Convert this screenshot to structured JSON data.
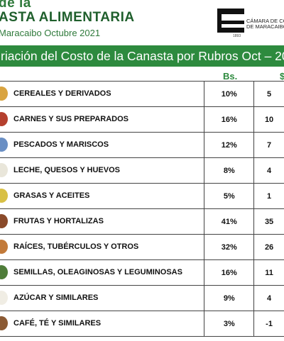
{
  "header": {
    "title_line1": "de la",
    "title_line2": "ASTA ALIMENTARIA",
    "subtitle": "Maracaibo Octubre 2021",
    "logo_line1": "CÁMARA DE CO",
    "logo_line2": "DE MARACAIBO",
    "logo_small": "1893"
  },
  "banner": {
    "text": "riación del Costo de la Canasta por Rubros Oct – 20"
  },
  "columns": {
    "bs": "Bs.",
    "usd": "$"
  },
  "colors": {
    "accent_green": "#2d8a3e",
    "title_green": "#1f5f2c"
  },
  "rows": [
    {
      "name": "CEREALES Y DERIVADOS",
      "bs": "10%",
      "usd": "5",
      "icon": "bread-icon"
    },
    {
      "name": "CARNES Y SUS PREPARADOS",
      "bs": "16%",
      "usd": "10",
      "icon": "meat-icon"
    },
    {
      "name": "PESCADOS Y MARISCOS",
      "bs": "12%",
      "usd": "7",
      "icon": "fish-icon"
    },
    {
      "name": "LECHE, QUESOS Y HUEVOS",
      "bs": "8%",
      "usd": "4",
      "icon": "milk-icon"
    },
    {
      "name": "GRASAS Y ACEITES",
      "bs": "5%",
      "usd": "1",
      "icon": "oil-bottle-icon"
    },
    {
      "name": "FRUTAS Y HORTALIZAS",
      "bs": "41%",
      "usd": "35",
      "icon": "vegetables-icon"
    },
    {
      "name": "RAÍCES, TUBÉRCULOS Y OTROS",
      "bs": "32%",
      "usd": "26",
      "icon": "potato-icon"
    },
    {
      "name": "SEMILLAS, OLEAGINOSAS Y LEGUMINOSAS",
      "bs": "16%",
      "usd": "11",
      "icon": "seeds-icon"
    },
    {
      "name": "AZÚCAR Y SIMILARES",
      "bs": "9%",
      "usd": "4",
      "icon": "sugar-icon"
    },
    {
      "name": "CAFÉ, TÉ Y SIMILARES",
      "bs": "3%",
      "usd": "-1",
      "icon": "coffee-icon"
    }
  ]
}
